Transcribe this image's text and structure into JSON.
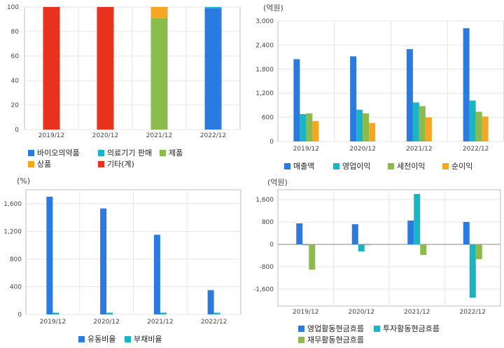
{
  "colors": {
    "blue": "#2b7ae0",
    "teal": "#1ab5c4",
    "green": "#8bbb4a",
    "orange": "#f5a623",
    "red": "#e8321e",
    "grid": "#e6e6e6",
    "axis": "#bdbdbd"
  },
  "chart_data": [
    {
      "type": "bar",
      "stacked": true,
      "categories": [
        "2019/12",
        "2020/12",
        "2021/12",
        "2022/12"
      ],
      "ylim": [
        0,
        100
      ],
      "yticks": [
        0,
        20,
        40,
        60,
        80,
        100
      ],
      "unit": "",
      "series": [
        {
          "name": "바이오의약품",
          "color": "blue",
          "values": [
            0,
            0,
            0,
            99
          ]
        },
        {
          "name": "의료기기 판매",
          "color": "teal",
          "values": [
            0,
            0,
            0,
            1
          ]
        },
        {
          "name": "제품",
          "color": "green",
          "values": [
            0,
            0,
            91,
            0
          ]
        },
        {
          "name": "상품",
          "color": "orange",
          "values": [
            0,
            0,
            9,
            0
          ]
        },
        {
          "name": "기타(계)",
          "color": "red",
          "values": [
            100,
            100,
            0,
            0
          ]
        }
      ]
    },
    {
      "type": "bar",
      "categories": [
        "2019/12",
        "2020/12",
        "2021/12",
        "2022/12"
      ],
      "ylim": [
        0,
        3000
      ],
      "yticks": [
        0,
        600,
        1200,
        1800,
        2400,
        3000
      ],
      "yticklabels": [
        "0",
        "600",
        "1,200",
        "1,800",
        "2,400",
        "3,000"
      ],
      "unit": "(억원)",
      "series": [
        {
          "name": "매출액",
          "color": "blue",
          "values": [
            2050,
            2120,
            2300,
            2820
          ]
        },
        {
          "name": "영업이익",
          "color": "teal",
          "values": [
            680,
            790,
            970,
            1020
          ]
        },
        {
          "name": "세전이익",
          "color": "green",
          "values": [
            700,
            700,
            880,
            740
          ]
        },
        {
          "name": "순이익",
          "color": "orange",
          "values": [
            510,
            460,
            600,
            620
          ]
        }
      ]
    },
    {
      "type": "bar",
      "categories": [
        "2019/12",
        "2020/12",
        "2021/12",
        "2022/12"
      ],
      "ylim": [
        0,
        1800
      ],
      "yticks": [
        0,
        400,
        800,
        1200,
        1600
      ],
      "yticklabels": [
        "0",
        "400",
        "800",
        "1,200",
        "1,600"
      ],
      "unit": "(%)",
      "series": [
        {
          "name": "유동비율",
          "color": "blue",
          "values": [
            1700,
            1530,
            1150,
            350
          ]
        },
        {
          "name": "부채비율",
          "color": "teal",
          "values": [
            25,
            25,
            25,
            25
          ]
        }
      ]
    },
    {
      "type": "bar",
      "categories": [
        "2019/12",
        "2020/12",
        "2021/12",
        "2022/12"
      ],
      "ylim": [
        -2200,
        1950
      ],
      "yticks": [
        -1600,
        -800,
        0,
        800,
        1600
      ],
      "yticklabels": [
        "-1,600",
        "-800",
        "0",
        "800",
        "1,600"
      ],
      "unit": "(억원)",
      "series": [
        {
          "name": "영업활동현금흐름",
          "color": "blue",
          "values": [
            750,
            720,
            850,
            800
          ]
        },
        {
          "name": "투자활동현금흐름",
          "color": "teal",
          "values": [
            -30,
            -250,
            1800,
            -1900
          ]
        },
        {
          "name": "재무활동현금흐름",
          "color": "green",
          "values": [
            -900,
            -30,
            -380,
            -530
          ]
        }
      ]
    }
  ]
}
